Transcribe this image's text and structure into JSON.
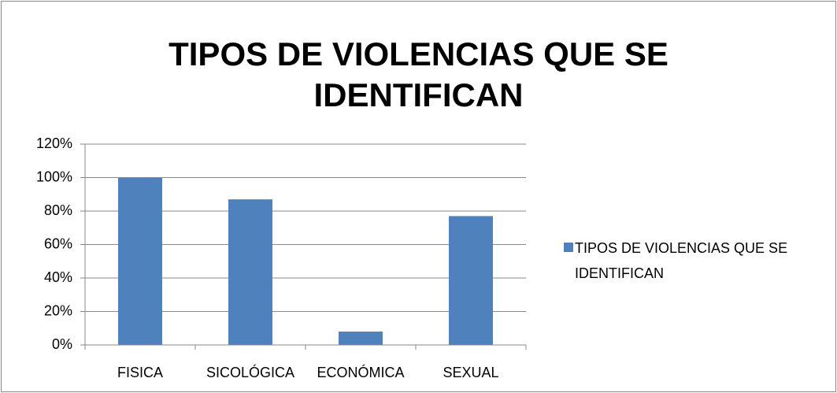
{
  "chart_data": {
    "type": "bar",
    "title": "TIPOS DE VIOLENCIAS QUE SE IDENTIFICAN",
    "categories": [
      "FISICA",
      "SICOLÓGICA",
      "ECONÓMICA",
      "SEXUAL"
    ],
    "series": [
      {
        "name": "TIPOS DE VIOLENCIAS QUE SE IDENTIFICAN",
        "color": "#4f81bd",
        "values": [
          100,
          87,
          8,
          77
        ]
      }
    ],
    "ylim": [
      0,
      120
    ],
    "yticks": [
      {
        "value": 0,
        "label": "0%"
      },
      {
        "value": 20,
        "label": "20%"
      },
      {
        "value": 40,
        "label": "40%"
      },
      {
        "value": 60,
        "label": "60%"
      },
      {
        "value": 80,
        "label": "80%"
      },
      {
        "value": 100,
        "label": "100%"
      },
      {
        "value": 120,
        "label": "120%"
      }
    ],
    "grid": true,
    "legend": "right"
  }
}
